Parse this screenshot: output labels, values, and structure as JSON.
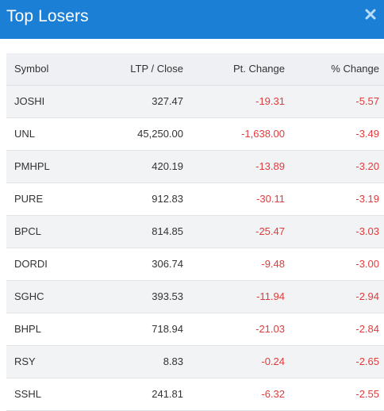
{
  "header": {
    "title": "Top Losers",
    "close_icon": "close-icon",
    "background": "#1b7fd6"
  },
  "table": {
    "columns": [
      "Symbol",
      "LTP / Close",
      "Pt. Change",
      "% Change"
    ],
    "negative_color": "#e03b3b",
    "rows": [
      {
        "symbol": "JOSHI",
        "ltp": "327.47",
        "pt_change": "-19.31",
        "pct_change": "-5.57"
      },
      {
        "symbol": "UNL",
        "ltp": "45,250.00",
        "pt_change": "-1,638.00",
        "pct_change": "-3.49"
      },
      {
        "symbol": "PMHPL",
        "ltp": "420.19",
        "pt_change": "-13.89",
        "pct_change": "-3.20"
      },
      {
        "symbol": "PURE",
        "ltp": "912.83",
        "pt_change": "-30.11",
        "pct_change": "-3.19"
      },
      {
        "symbol": "BPCL",
        "ltp": "814.85",
        "pt_change": "-25.47",
        "pct_change": "-3.03"
      },
      {
        "symbol": "DORDI",
        "ltp": "306.74",
        "pt_change": "-9.48",
        "pct_change": "-3.00"
      },
      {
        "symbol": "SGHC",
        "ltp": "393.53",
        "pt_change": "-11.94",
        "pct_change": "-2.94"
      },
      {
        "symbol": "BHPL",
        "ltp": "718.94",
        "pt_change": "-21.03",
        "pct_change": "-2.84"
      },
      {
        "symbol": "RSY",
        "ltp": "8.83",
        "pt_change": "-0.24",
        "pct_change": "-2.65"
      },
      {
        "symbol": "SSHL",
        "ltp": "241.81",
        "pt_change": "-6.32",
        "pct_change": "-2.55"
      }
    ]
  }
}
